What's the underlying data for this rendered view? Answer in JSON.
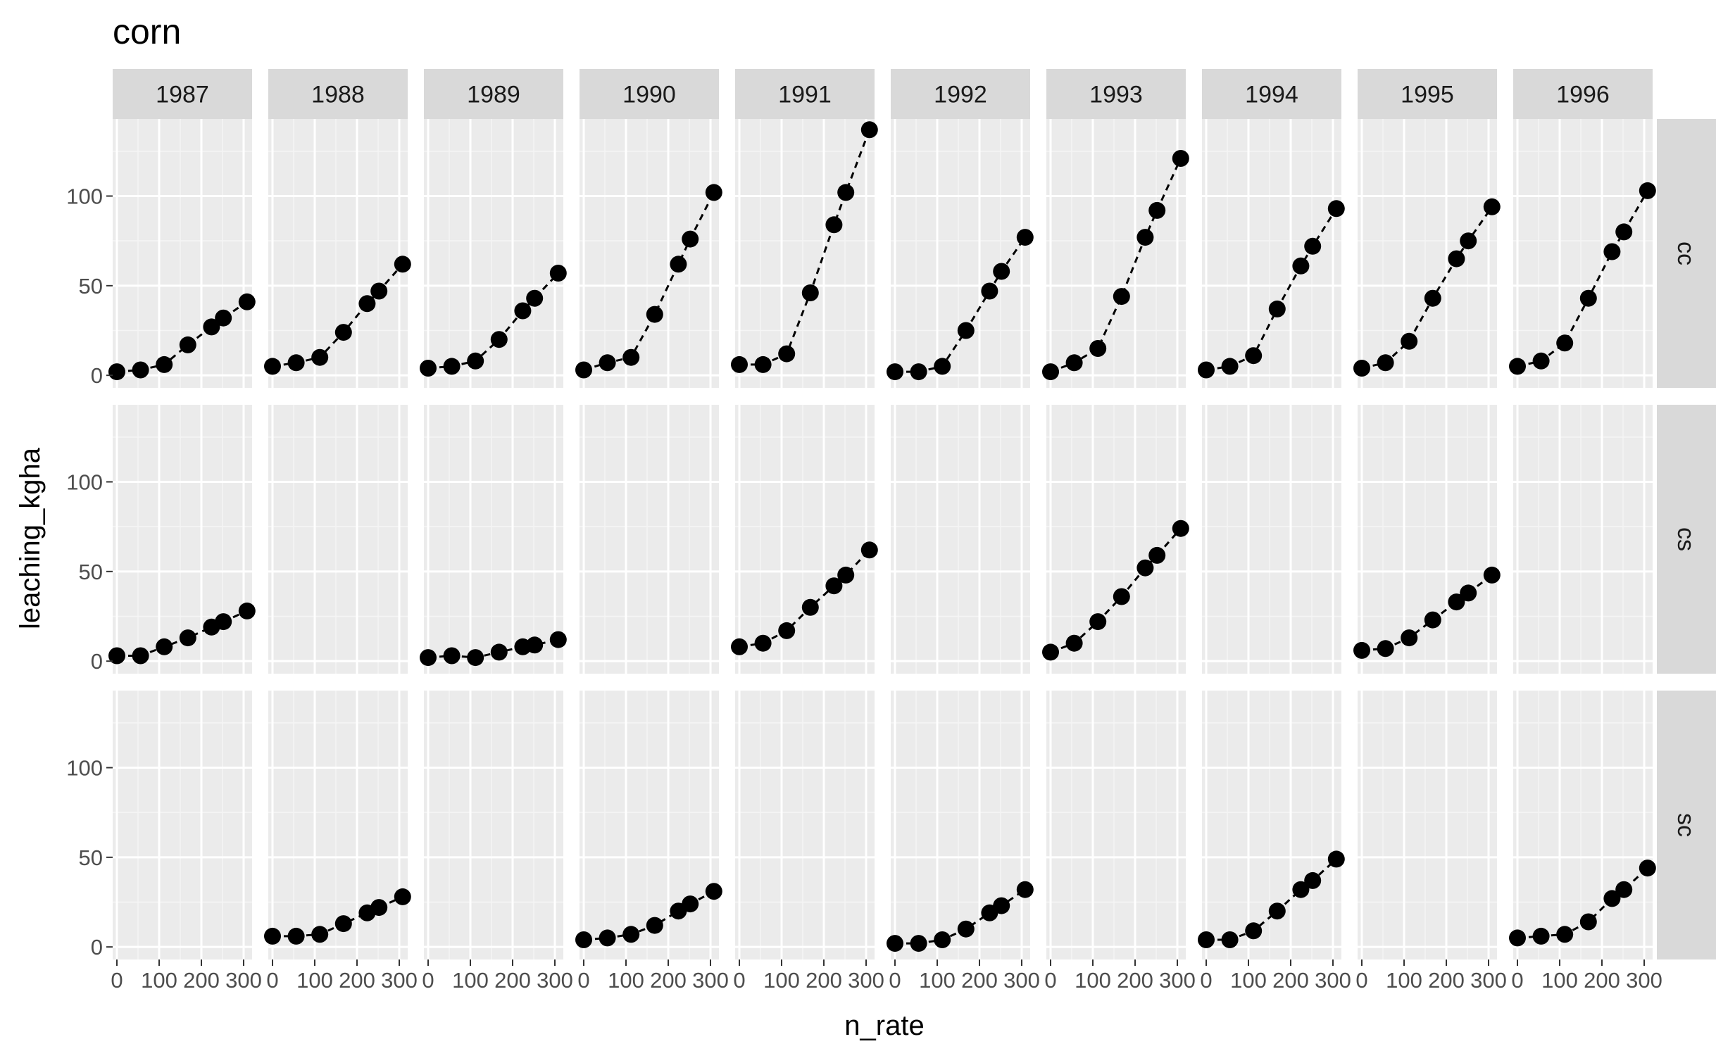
{
  "chart_data": {
    "type": "scatter",
    "title": "corn",
    "xlabel": "n_rate",
    "ylabel": "leaching_kgha",
    "x_ticks": [
      0,
      100,
      200,
      300
    ],
    "x_tick_labels": [
      "0",
      "100",
      "200",
      "300"
    ],
    "x_lim": [
      -10,
      320
    ],
    "y_ticks": [
      0,
      50,
      100
    ],
    "y_tick_labels": [
      "0",
      "50",
      "100"
    ],
    "y_lim": [
      -7,
      143
    ],
    "grid": true,
    "line_style": "dashed",
    "column_facets": [
      "1987",
      "1988",
      "1989",
      "1990",
      "1991",
      "1992",
      "1993",
      "1994",
      "1995",
      "1996"
    ],
    "row_facets": [
      "cc",
      "cs",
      "sc"
    ],
    "x": [
      0,
      56,
      112,
      168,
      224,
      252,
      308
    ],
    "panels": {
      "cc": {
        "1987": [
          2,
          3,
          6,
          17,
          27,
          32,
          41
        ],
        "1988": [
          5,
          7,
          10,
          24,
          40,
          47,
          62
        ],
        "1989": [
          4,
          5,
          8,
          20,
          36,
          43,
          57
        ],
        "1990": [
          3,
          7,
          10,
          34,
          62,
          76,
          102
        ],
        "1991": [
          6,
          6,
          12,
          46,
          84,
          102,
          137
        ],
        "1992": [
          2,
          2,
          5,
          25,
          47,
          58,
          77
        ],
        "1993": [
          2,
          7,
          15,
          44,
          77,
          92,
          121
        ],
        "1994": [
          3,
          5,
          11,
          37,
          61,
          72,
          93
        ],
        "1995": [
          4,
          7,
          19,
          43,
          65,
          75,
          94
        ],
        "1996": [
          5,
          8,
          18,
          43,
          69,
          80,
          103
        ]
      },
      "cs": {
        "1987": [
          3,
          3,
          8,
          13,
          19,
          22,
          28
        ],
        "1988": null,
        "1989": [
          2,
          3,
          2,
          5,
          8,
          9,
          12
        ],
        "1990": null,
        "1991": [
          8,
          10,
          17,
          30,
          42,
          48,
          62
        ],
        "1992": null,
        "1993": [
          5,
          10,
          22,
          36,
          52,
          59,
          74
        ],
        "1994": null,
        "1995": [
          6,
          7,
          13,
          23,
          33,
          38,
          48
        ],
        "1996": null
      },
      "sc": {
        "1987": null,
        "1988": [
          6,
          6,
          7,
          13,
          19,
          22,
          28
        ],
        "1989": null,
        "1990": [
          4,
          5,
          7,
          12,
          20,
          24,
          31
        ],
        "1991": null,
        "1992": [
          2,
          2,
          4,
          10,
          19,
          23,
          32
        ],
        "1993": null,
        "1994": [
          4,
          4,
          9,
          20,
          32,
          37,
          49
        ],
        "1995": null,
        "1996": [
          5,
          6,
          7,
          14,
          27,
          32,
          44
        ]
      }
    },
    "colors": {
      "panel_background": "#ebebeb",
      "grid_major": "#ffffff",
      "grid_minor": "#f5f5f5",
      "strip_background": "#d9d9d9",
      "strip_text": "#1a1a1a",
      "tick_text": "#4d4d4d",
      "tick_mark": "#333333",
      "points": "#000000",
      "line": "#000000"
    }
  }
}
